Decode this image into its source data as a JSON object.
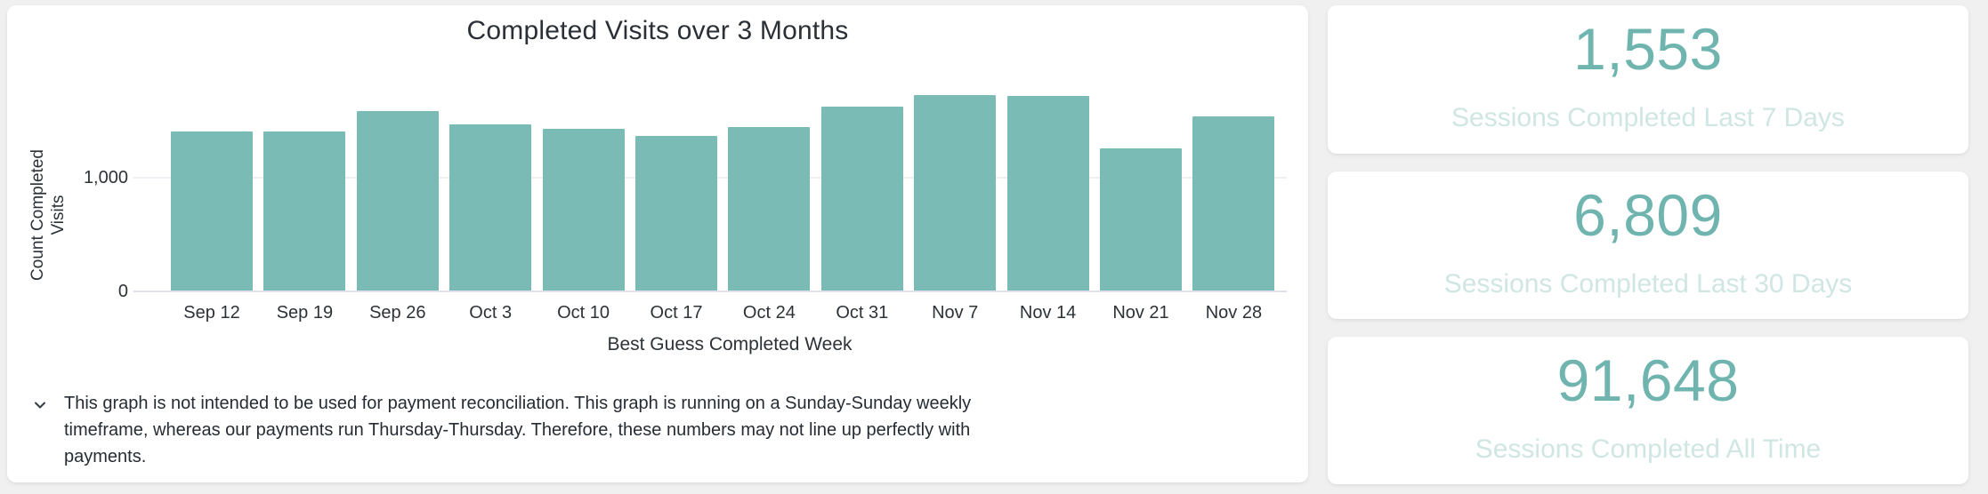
{
  "page": {
    "background": "#f0f0f1",
    "card_background": "#ffffff"
  },
  "chart_card": {
    "title": "Completed Visits over 3 Months",
    "disclaimer_icon": "chevron-down",
    "disclaimer_lines": [
      "This graph is not intended to be used for payment reconciliation. This graph is running on a Sunday-Sunday weekly",
      "timeframe, whereas our payments run Thursday-Thursday. Therefore, these numbers may not line up perfectly with",
      "payments."
    ]
  },
  "chart_data": {
    "type": "bar",
    "title": "Completed Visits over 3 Months",
    "xlabel": "Best Guess Completed Week",
    "ylabel": "Count Completed\nVisits",
    "categories": [
      "Sep 12",
      "Sep 19",
      "Sep 26",
      "Oct 3",
      "Oct 10",
      "Oct 17",
      "Oct 24",
      "Oct 31",
      "Nov 7",
      "Nov 14",
      "Nov 21",
      "Nov 28"
    ],
    "values": [
      1400,
      1400,
      1580,
      1460,
      1420,
      1360,
      1440,
      1620,
      1720,
      1710,
      1250,
      1530
    ],
    "ylim": [
      0,
      1875
    ],
    "yticks": [
      {
        "value": 0,
        "label": "0"
      },
      {
        "value": 1000,
        "label": "1,000"
      }
    ],
    "grid": "horizontal",
    "legend": "none",
    "bar_color": "#7bbbb5",
    "gridline_color": "#eeeff5",
    "axis_line_color": "#e0e2ee"
  },
  "stats": {
    "cards": [
      {
        "value": "1,553",
        "label": "Sessions Completed Last 7 Days"
      },
      {
        "value": "6,809",
        "label": "Sessions Completed Last 30 Days"
      },
      {
        "value": "91,648",
        "label": "Sessions Completed All Time"
      }
    ],
    "value_color": "#6fb4ae",
    "label_color": "#cfe6e2"
  }
}
